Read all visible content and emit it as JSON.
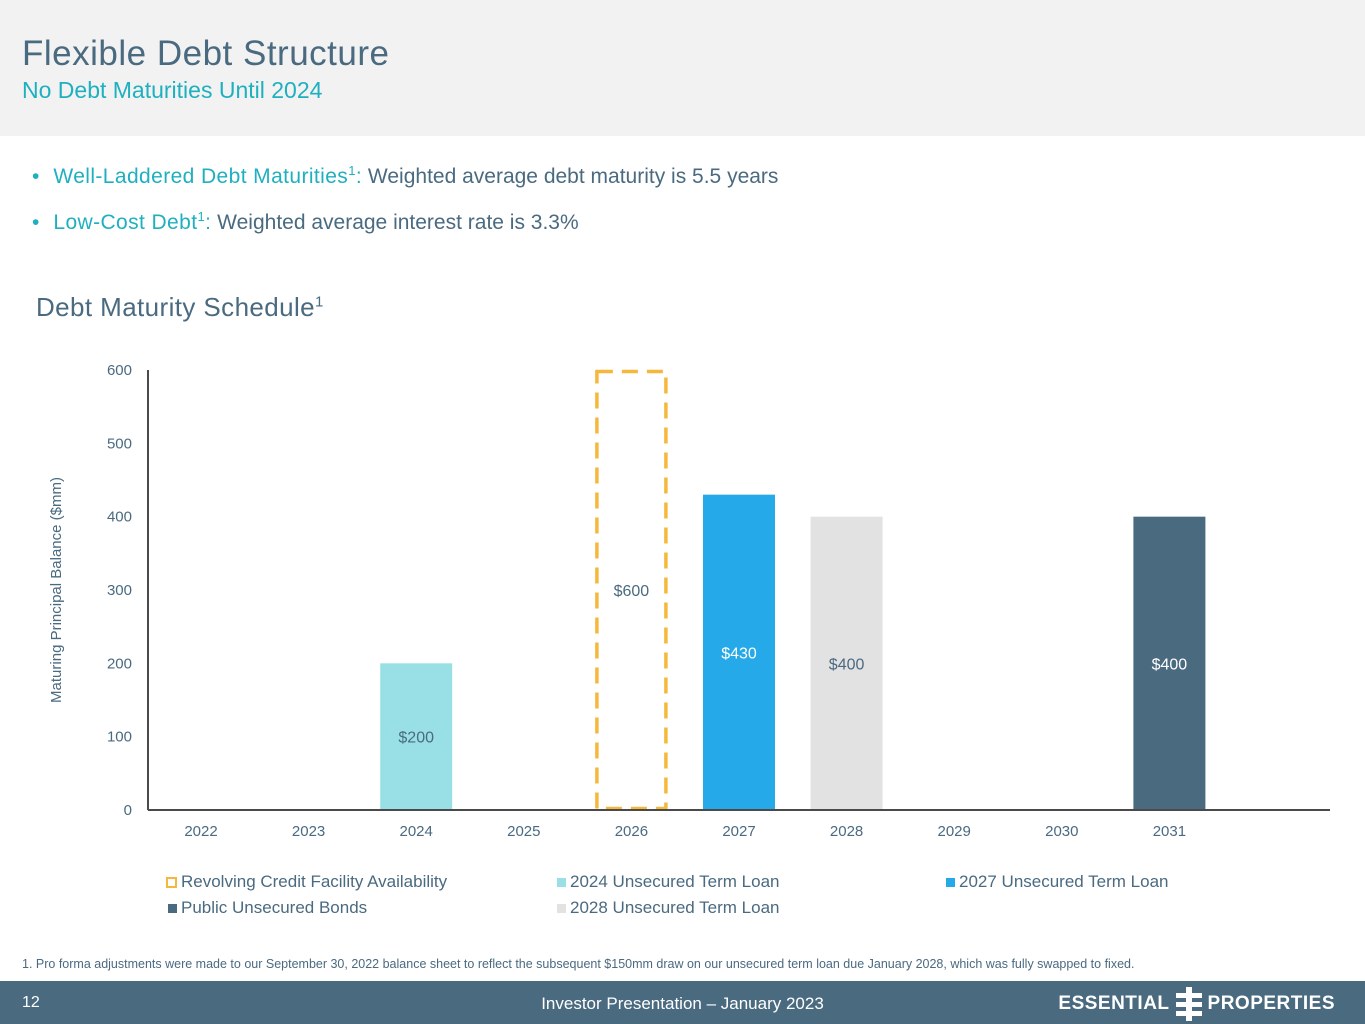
{
  "header": {
    "title": "Flexible Debt Structure",
    "subtitle": "No Debt Maturities Until 2024"
  },
  "bullets": [
    {
      "marker": "•",
      "lead": "Well-Laddered Debt Maturities",
      "sup": "1",
      "colon": ":",
      "text": " Weighted average debt maturity is 5.5 years"
    },
    {
      "marker": "•",
      "lead": "Low-Cost Debt",
      "sup": "1",
      "colon": ":",
      "text": " Weighted average interest rate is 3.3%"
    }
  ],
  "chart_title": {
    "text": "Debt Maturity Schedule",
    "sup": "1"
  },
  "chart_data": {
    "type": "bar",
    "ylabel": "Maturing Principal Balance ($mm)",
    "ylim": [
      0,
      600
    ],
    "yticks": [
      "0",
      "100",
      "200",
      "300",
      "400",
      "500",
      "600"
    ],
    "categories": [
      "2022",
      "2023",
      "2024",
      "2025",
      "2026",
      "2027",
      "2028",
      "2029",
      "2030",
      "2031"
    ],
    "series": [
      {
        "name": "Revolving Credit Facility Availability",
        "color": "#f5b83d",
        "style": "dashed-outline",
        "values": [
          0,
          0,
          0,
          0,
          600,
          0,
          0,
          0,
          0,
          0
        ],
        "labels": [
          "",
          "",
          "",
          "",
          "$600",
          "",
          "",
          "",
          "",
          ""
        ]
      },
      {
        "name": "2024 Unsecured Term Loan",
        "color": "#99e0e6",
        "values": [
          0,
          0,
          200,
          0,
          0,
          0,
          0,
          0,
          0,
          0
        ],
        "labels": [
          "",
          "",
          "$200",
          "",
          "",
          "",
          "",
          "",
          "",
          ""
        ]
      },
      {
        "name": "2027 Unsecured Term Loan",
        "color": "#25a9e8",
        "values": [
          0,
          0,
          0,
          0,
          0,
          430,
          0,
          0,
          0,
          0
        ],
        "labels": [
          "",
          "",
          "",
          "",
          "",
          "$430",
          "",
          "",
          "",
          ""
        ]
      },
      {
        "name": "Public Unsecured Bonds",
        "color": "#4a6a80",
        "values": [
          0,
          0,
          0,
          0,
          0,
          0,
          0,
          0,
          0,
          400
        ],
        "labels": [
          "",
          "",
          "",
          "",
          "",
          "",
          "",
          "",
          "",
          "$400"
        ]
      },
      {
        "name": "2028 Unsecured Term Loan",
        "color": "#e2e2e2",
        "values": [
          0,
          0,
          0,
          0,
          0,
          0,
          400,
          0,
          0,
          0
        ],
        "labels": [
          "",
          "",
          "",
          "",
          "",
          "",
          "$400",
          "",
          "",
          ""
        ]
      }
    ],
    "legend_placement": "bottom"
  },
  "footnote": "1. Pro forma adjustments were made to our September 30, 2022 balance sheet to reflect the subsequent $150mm draw on our unsecured term loan due January 2028, which was fully swapped to fixed.",
  "footer": {
    "page_number": "12",
    "text": "Investor Presentation – January 2023",
    "logo_left": "ESSENTIAL",
    "logo_right": "PROPERTIES",
    "logo_icon": "essential-properties-logo-icon"
  }
}
